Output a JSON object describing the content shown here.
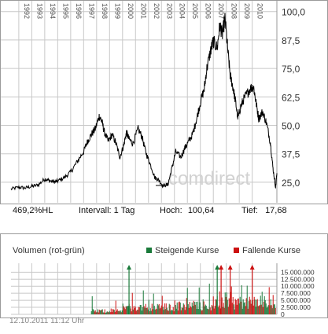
{
  "chart_data": [
    {
      "type": "line",
      "x_ticks": [
        "1992",
        "1993",
        "1994",
        "1995",
        "1996",
        "1997",
        "1998",
        "1999",
        "2000",
        "2001",
        "2002",
        "2003",
        "2004",
        "2005",
        "2006",
        "2007",
        "2008",
        "2009",
        "2010"
      ],
      "y_ticks": [
        "100,0",
        "87,5",
        "75,0",
        "62,5",
        "50,0",
        "37,5",
        "25,0"
      ],
      "y_values": [
        100,
        87.5,
        75,
        62.5,
        50,
        37.5,
        25
      ],
      "ylim": [
        16,
        103
      ],
      "xlim": [
        1991.4,
        2011.9
      ],
      "grid": true,
      "watermark": "comdirect",
      "series": [
        {
          "x": [
            1991.4,
            1992.0,
            1992.5,
            1993.0,
            1993.5,
            1994.0,
            1994.3,
            1994.7,
            1995.0,
            1995.5,
            1996.0,
            1996.5,
            1997.0,
            1997.3,
            1997.6,
            1997.9,
            1998.2,
            1998.4,
            1998.6,
            1998.9,
            1999.2,
            1999.5,
            1999.8,
            2000.1,
            2000.3,
            2000.5,
            2000.8,
            2001.2,
            2001.5,
            2001.8,
            2002.1,
            2002.5,
            2002.8,
            2003.1,
            2003.5,
            2003.8,
            2004.1,
            2004.5,
            2004.8,
            2005.1,
            2005.4,
            2005.7,
            2006.0,
            2006.3,
            2006.5,
            2006.8,
            2007.0,
            2007.3,
            2007.5,
            2007.7,
            2007.9,
            2008.1,
            2008.3,
            2008.5,
            2008.7,
            2008.9,
            2009.1,
            2009.3,
            2009.6,
            2009.9,
            2010.1,
            2010.3,
            2010.5,
            2010.8,
            2011.1,
            2011.4,
            2011.6,
            2011.8,
            2011.9
          ],
          "y": [
            22.0,
            22.8,
            22.5,
            23.2,
            23.8,
            26.5,
            25.8,
            25.2,
            25.5,
            27.0,
            29.5,
            34.0,
            38.5,
            43.0,
            46.0,
            48.5,
            54.0,
            52.0,
            47.0,
            43.0,
            46.0,
            42.0,
            36.0,
            41.5,
            47.0,
            44.0,
            42.0,
            48.5,
            45.0,
            38.0,
            33.5,
            27.0,
            26.0,
            23.5,
            24.0,
            31.0,
            38.5,
            36.0,
            40.0,
            43.0,
            46.0,
            52.5,
            60.0,
            66.0,
            75.0,
            83.0,
            87.0,
            84.0,
            94.0,
            90.0,
            97.0,
            84.0,
            72.0,
            67.0,
            61.0,
            53.0,
            58.0,
            61.0,
            64.0,
            66.5,
            67.0,
            60.0,
            53.0,
            56.0,
            51.0,
            42.5,
            31.0,
            23.0,
            29.0
          ]
        }
      ],
      "stats": {
        "performance": "469,2%HL",
        "interval": "Intervall: 1 Tag",
        "high_label": "Hoch:",
        "high": "100,64",
        "low_label": "Tief:",
        "low": "17,68"
      }
    },
    {
      "type": "bar",
      "title": "Volumen (rot-grün)",
      "legend": [
        {
          "name": "Steigende Kurse",
          "color": "#1a7a3a"
        },
        {
          "name": "Fallende Kurse",
          "color": "#cc1111"
        }
      ],
      "y_ticks": [
        "15.000.000",
        "12.500.000",
        "10.000.000",
        "7.500.000",
        "5.000.000",
        "2.500.000",
        "0"
      ],
      "y_values": [
        15000000,
        12500000,
        10000000,
        7500000,
        5000000,
        2500000,
        0
      ],
      "ylim": [
        0,
        16500000
      ],
      "overflow_arrows": [
        {
          "year": 2000.5,
          "color": "#1a7a3a"
        },
        {
          "year": 2007.3,
          "color": "#1a7a3a"
        },
        {
          "year": 2007.6,
          "color": "#cc1111"
        },
        {
          "year": 2008.3,
          "color": "#cc1111"
        },
        {
          "year": 2010.0,
          "color": "#cc1111"
        }
      ]
    }
  ],
  "timestamp": "12.10.2011 11:12 Uhr",
  "colors": {
    "line": "#000000",
    "grid": "#c8c8c8",
    "rising": "#1a7a3a",
    "falling": "#cc1111"
  }
}
